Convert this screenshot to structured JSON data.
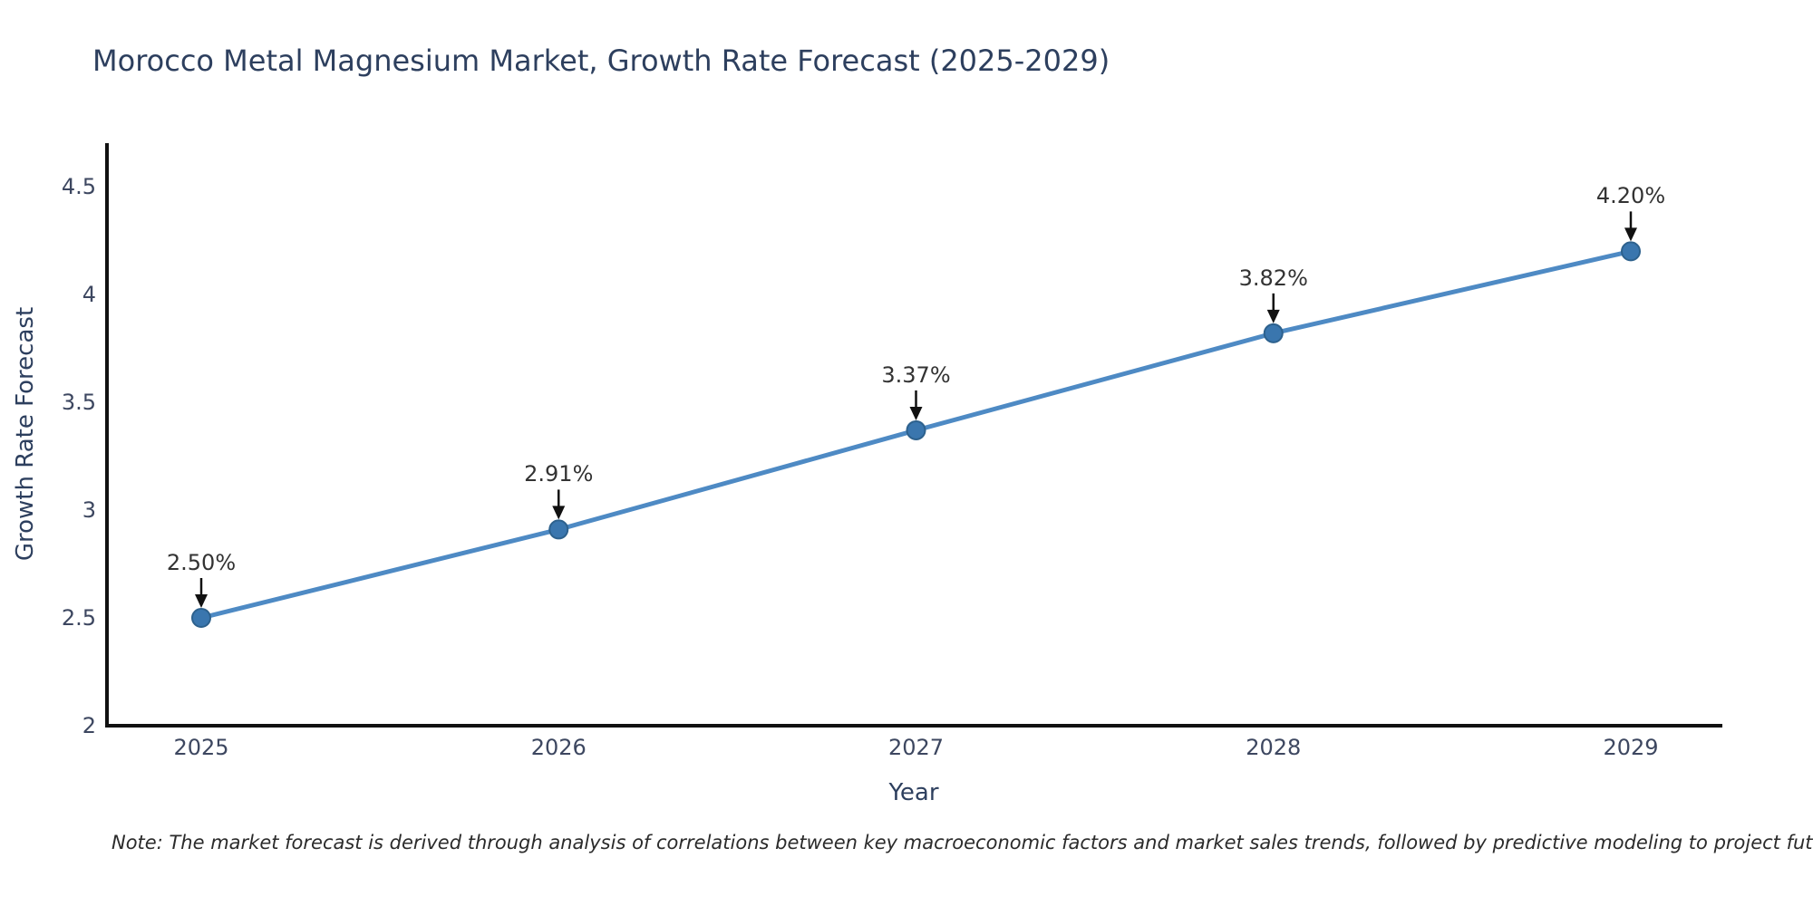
{
  "title": "Morocco Metal Magnesium Market, Growth Rate Forecast (2025-2029)",
  "note": "Note: The market forecast is derived through analysis of correlations between key macroeconomic factors and market sales trends, followed by predictive modeling to project future sales",
  "chart_data": {
    "type": "line",
    "title": "Morocco Metal Magnesium Market, Growth Rate Forecast (2025-2029)",
    "xlabel": "Year",
    "ylabel": "Growth Rate Forecast",
    "x": [
      2025,
      2026,
      2027,
      2028,
      2029
    ],
    "values": [
      2.5,
      2.91,
      3.37,
      3.82,
      4.2
    ],
    "point_labels": [
      "2.50%",
      "2.91%",
      "3.37%",
      "3.82%",
      "4.20%"
    ],
    "x_tick_labels": [
      "2025",
      "2026",
      "2027",
      "2028",
      "2029"
    ],
    "y_tick_values": [
      4.5,
      4,
      3.5,
      3,
      2.5,
      2
    ],
    "y_tick_labels": [
      "4.5",
      "4",
      "3.5",
      "3",
      "2.5",
      "2"
    ],
    "ylim": [
      2,
      4.7
    ],
    "grid": false,
    "legend": "none",
    "colors": {
      "line": "#4e8ac4",
      "marker_fill": "#3a76ae",
      "marker_edge": "#2d618d",
      "axis": "#111111",
      "arrow": "#111111",
      "title_text": "#2d3f5e",
      "tick_text": "#3d4760",
      "annotation_text": "#333333"
    }
  }
}
